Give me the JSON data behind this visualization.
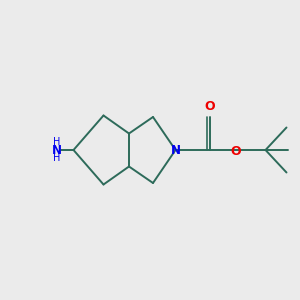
{
  "background_color": "#ebebeb",
  "bond_color": "#2d6b5a",
  "bond_width": 1.4,
  "N_color": "#0000ee",
  "O_color": "#ee0000",
  "NH2_color": "#0000ee",
  "figsize": [
    3.0,
    3.0
  ],
  "dpi": 100,
  "xlim": [
    0,
    10
  ],
  "ylim": [
    0,
    10
  ]
}
